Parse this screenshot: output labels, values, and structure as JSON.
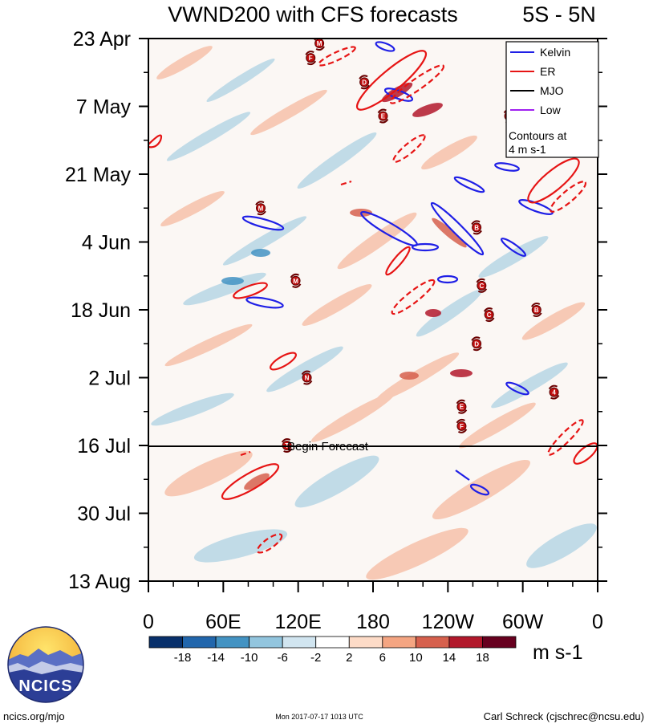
{
  "header": {
    "title": "VWND200 with CFS forecasts",
    "region": "5S - 5N"
  },
  "legend": {
    "items": [
      {
        "label": "Kelvin",
        "color": "#1f1fe6"
      },
      {
        "label": "ER",
        "color": "#e61414"
      },
      {
        "label": "MJO",
        "color": "#000000"
      },
      {
        "label": "Low",
        "color": "#a020f0"
      }
    ],
    "note_line1": "Contours at",
    "note_line2": "4 m s-1"
  },
  "annotation": {
    "forecast_label": "Begin Forecast"
  },
  "colorbar": {
    "ticks": [
      "-18",
      "-14",
      "-10",
      "-6",
      "-2",
      "2",
      "6",
      "10",
      "14",
      "18"
    ],
    "colors": [
      "#08306b",
      "#2166ac",
      "#4393c3",
      "#92c5de",
      "#d1e5f0",
      "#ffffff",
      "#fddbc7",
      "#f4a582",
      "#d6604d",
      "#b2182b",
      "#67001f"
    ],
    "unit": "m s-1"
  },
  "footer": {
    "left": "ncics.org/mjo",
    "center": "Mon 2017-07-17 1013 UTC",
    "right": "Carl Schreck (cjschrec@ncsu.edu)"
  },
  "logo": {
    "text": "NCICS"
  },
  "chart_data": {
    "type": "heatmap",
    "title": "VWND200 with CFS forecasts",
    "subtitle": "5S - 5N",
    "xlabel": "",
    "ylabel": "",
    "x_ticks": [
      "0",
      "60E",
      "120E",
      "180",
      "120W",
      "60W",
      "0"
    ],
    "x_range_deg": [
      0,
      360
    ],
    "y_ticks": [
      "23 Apr",
      "7 May",
      "21 May",
      "4 Jun",
      "18 Jun",
      "2 Jul",
      "16 Jul",
      "30 Jul",
      "13 Aug"
    ],
    "y_range_days": [
      0,
      112
    ],
    "forecast_start": "16 Jul",
    "grid": false,
    "legend_position": "top-right",
    "storms": [
      {
        "label": "M",
        "lon": 137,
        "day": 1
      },
      {
        "label": "F",
        "lon": 130,
        "day": 4
      },
      {
        "label": "D",
        "lon": 173,
        "day": 9
      },
      {
        "label": "E",
        "lon": 188,
        "day": 16
      },
      {
        "label": "A",
        "lon": 289,
        "day": 16
      },
      {
        "label": "M",
        "lon": 90,
        "day": 35
      },
      {
        "label": "B",
        "lon": 263,
        "day": 39
      },
      {
        "label": "M",
        "lon": 118,
        "day": 50
      },
      {
        "label": "C",
        "lon": 267,
        "day": 51
      },
      {
        "label": "C",
        "lon": 273,
        "day": 57
      },
      {
        "label": "B",
        "lon": 311,
        "day": 56
      },
      {
        "label": "D",
        "lon": 263,
        "day": 63
      },
      {
        "label": "N",
        "lon": 127,
        "day": 70
      },
      {
        "label": "4",
        "lon": 325,
        "day": 73
      },
      {
        "label": "E",
        "lon": 251,
        "day": 76
      },
      {
        "label": "F",
        "lon": 251,
        "day": 80
      },
      {
        "label": "T",
        "lon": 111,
        "day": 84
      }
    ]
  }
}
